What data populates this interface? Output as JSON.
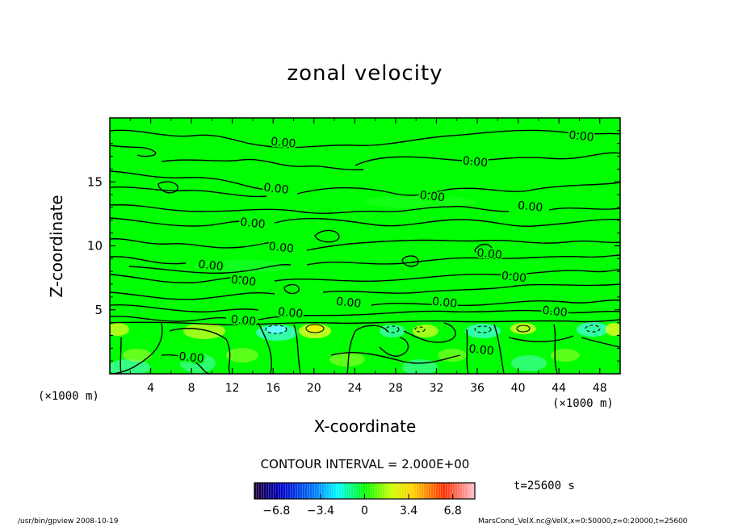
{
  "chart_data": {
    "type": "heatmap",
    "title": "zonal velocity",
    "xlabel": "X-coordinate",
    "ylabel": "Z-coordinate",
    "x_unit_left": "(×1000 m)",
    "x_unit_right": "(×1000 m)",
    "xlim": [
      0,
      50
    ],
    "ylim": [
      0,
      20
    ],
    "x_ticks": [
      4,
      8,
      12,
      16,
      20,
      24,
      28,
      32,
      36,
      40,
      44,
      48
    ],
    "y_ticks": [
      5,
      10,
      15
    ],
    "x_tick_labels": [
      "4",
      "8",
      "12",
      "16",
      "20",
      "24",
      "28",
      "32",
      "36",
      "40",
      "44",
      "48"
    ],
    "y_tick_labels": [
      "5",
      "10",
      "15"
    ],
    "contour_interval_text": "CONTOUR INTERVAL = 2.000E+00",
    "contour_interval": 2.0,
    "contour_label": "0.00",
    "contour_labels": [
      {
        "x": 17.0,
        "z": 18.1,
        "text": "0.00"
      },
      {
        "x": 46.2,
        "z": 18.6,
        "text": "0.00"
      },
      {
        "x": 35.8,
        "z": 16.6,
        "text": "0.00"
      },
      {
        "x": 16.3,
        "z": 14.5,
        "text": "0.00"
      },
      {
        "x": 31.6,
        "z": 13.9,
        "text": "0.00"
      },
      {
        "x": 41.2,
        "z": 13.1,
        "text": "0.00"
      },
      {
        "x": 14.0,
        "z": 11.8,
        "text": "0.00"
      },
      {
        "x": 16.8,
        "z": 9.9,
        "text": "0.00"
      },
      {
        "x": 37.2,
        "z": 9.4,
        "text": "0.00"
      },
      {
        "x": 9.9,
        "z": 8.5,
        "text": "0.00"
      },
      {
        "x": 13.1,
        "z": 7.3,
        "text": "0.00"
      },
      {
        "x": 39.6,
        "z": 7.6,
        "text": "0.00"
      },
      {
        "x": 23.4,
        "z": 5.6,
        "text": "0.00"
      },
      {
        "x": 32.8,
        "z": 5.6,
        "text": "0.00"
      },
      {
        "x": 17.7,
        "z": 4.8,
        "text": "0.00"
      },
      {
        "x": 43.6,
        "z": 4.9,
        "text": "0.00"
      },
      {
        "x": 13.1,
        "z": 4.2,
        "text": "0.00"
      },
      {
        "x": 36.4,
        "z": 1.9,
        "text": "0.00"
      },
      {
        "x": 8.0,
        "z": 1.3,
        "text": "0.00"
      }
    ],
    "colorbar": {
      "min": -8.5,
      "max": 8.5,
      "ticks": [
        -6.8,
        -3.4,
        0,
        3.4,
        6.8
      ],
      "tick_labels": [
        "−6.8",
        "−3.4",
        "0",
        "3.4",
        "6.8"
      ]
    },
    "time_label": "t=25600 s",
    "colors": {
      "background_field": "#00ff00",
      "contour_line": "#000000"
    }
  },
  "footer": {
    "left": "/usr/bin/gpview   2008-10-19",
    "right": "MarsCond_VelX.nc@VelX,x=0:50000,z=0:20000,t=25600"
  }
}
